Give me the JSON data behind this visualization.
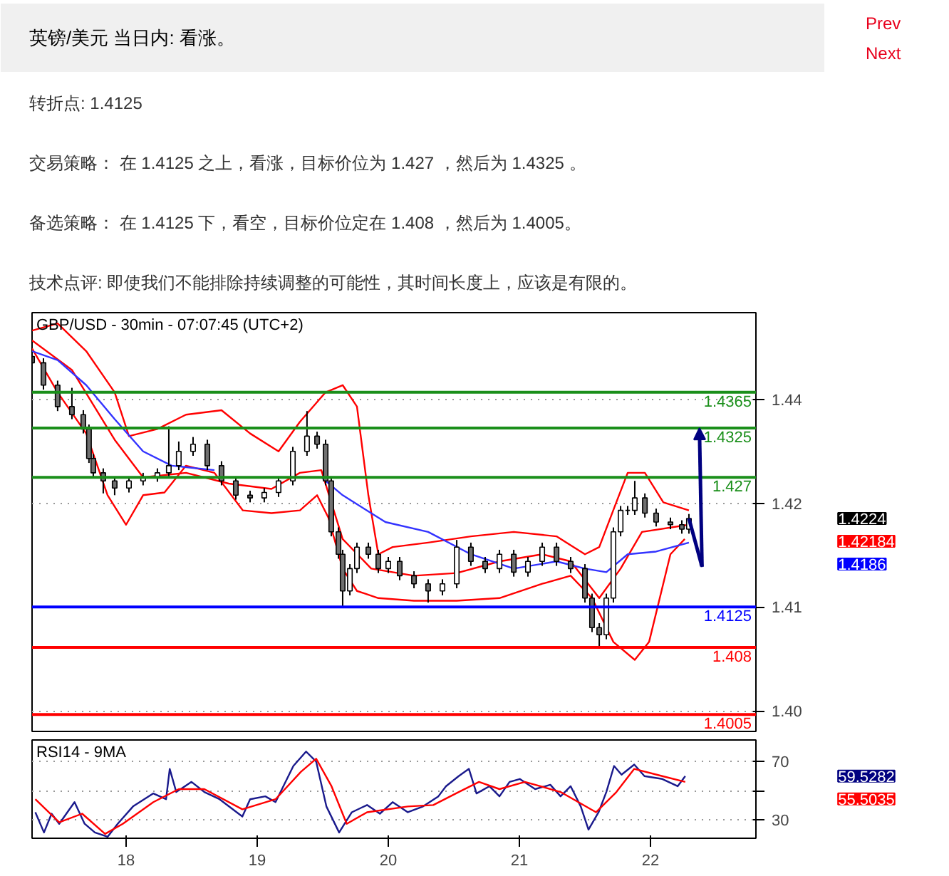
{
  "chart_data": [
    {
      "type": "other",
      "title": "英镑/美元 当日内: 看涨。",
      "annotations": [
        "Prev",
        "Next",
        "转折点: 1.4125",
        "交易策略： 在 1.4125 之上，看涨，目标价位为 1.427 ，然后为 1.4325 。",
        "备选策略： 在 1.4125 下，看空，目标价位定在 1.408 ，然后为 1.4005。",
        "技术点评: 即使我们不能排除持续调整的可能性，其时间长度上，应该是有限的。"
      ]
    },
    {
      "type": "candlestick",
      "title": "GBP/USD - 30min - 07:07:45 (UTC+2)",
      "xlim": [
        17.283,
        22.804
      ],
      "ylim": [
        1.3986,
        1.4454
      ],
      "yticks": [
        {
          "value": 1.4009,
          "label": "1.40"
        },
        {
          "value": 1.4125,
          "label": "1.41"
        },
        {
          "value": 1.4241,
          "label": "1.42"
        },
        {
          "value": 1.4357,
          "label": "1.44"
        }
      ],
      "grid": "y",
      "tick_labels": "y",
      "x": [
        17.283,
        17.37,
        17.478,
        17.587,
        17.674,
        17.717,
        17.75,
        17.826,
        17.913,
        18.022,
        18.13,
        18.239,
        18.326,
        18.402,
        18.511,
        18.62,
        18.728,
        18.837,
        18.946,
        19.054,
        19.163,
        19.272,
        19.38,
        19.457,
        19.522,
        19.565,
        19.62,
        19.652,
        19.707,
        19.761,
        19.848,
        19.924,
        20.0,
        20.087,
        20.196,
        20.304,
        20.413,
        20.522,
        20.63,
        20.739,
        20.848,
        20.957,
        21.065,
        21.174,
        21.283,
        21.391,
        21.5,
        21.554,
        21.609,
        21.663,
        21.717,
        21.772,
        21.826,
        21.88,
        21.957,
        22.043,
        22.152,
        22.239,
        22.293
      ],
      "ohlc": [
        [
          1.4405,
          1.441,
          1.4393,
          1.4398
        ],
        [
          1.4398,
          1.4403,
          1.4368,
          1.4373
        ],
        [
          1.4373,
          1.4378,
          1.4344,
          1.4349
        ],
        [
          1.4349,
          1.437,
          1.4335,
          1.434
        ],
        [
          1.434,
          1.4345,
          1.4319,
          1.4324
        ],
        [
          1.4324,
          1.4329,
          1.4286,
          1.4291
        ],
        [
          1.4291,
          1.4296,
          1.427,
          1.4275
        ],
        [
          1.4275,
          1.428,
          1.4252,
          1.4266
        ],
        [
          1.4266,
          1.4271,
          1.425,
          1.4258
        ],
        [
          1.4258,
          1.4271,
          1.4253,
          1.4266
        ],
        [
          1.4266,
          1.4275,
          1.4261,
          1.427
        ],
        [
          1.427,
          1.428,
          1.4265,
          1.4275
        ],
        [
          1.4275,
          1.4327,
          1.427,
          1.4283
        ],
        [
          1.4283,
          1.431,
          1.4278,
          1.4299
        ],
        [
          1.4299,
          1.4315,
          1.4294,
          1.4307
        ],
        [
          1.4307,
          1.4312,
          1.4278,
          1.4283
        ],
        [
          1.4283,
          1.4288,
          1.4261,
          1.4266
        ],
        [
          1.4266,
          1.4271,
          1.4245,
          1.425
        ],
        [
          1.425,
          1.4255,
          1.4242,
          1.4247
        ],
        [
          1.4247,
          1.4258,
          1.4242,
          1.4253
        ],
        [
          1.4253,
          1.4271,
          1.4248,
          1.4266
        ],
        [
          1.4266,
          1.4304,
          1.4261,
          1.4299
        ],
        [
          1.4299,
          1.4344,
          1.4294,
          1.4316
        ],
        [
          1.4316,
          1.4321,
          1.4302,
          1.4307
        ],
        [
          1.4307,
          1.4312,
          1.4261,
          1.4266
        ],
        [
          1.4266,
          1.4271,
          1.4204,
          1.4209
        ],
        [
          1.4209,
          1.4214,
          1.4179,
          1.4184
        ],
        [
          1.4184,
          1.4189,
          1.4125,
          1.4143
        ],
        [
          1.4143,
          1.4173,
          1.4138,
          1.4168
        ],
        [
          1.4168,
          1.4197,
          1.4163,
          1.4192
        ],
        [
          1.4192,
          1.4197,
          1.4179,
          1.4184
        ],
        [
          1.4184,
          1.4189,
          1.4163,
          1.4168
        ],
        [
          1.4168,
          1.4181,
          1.4163,
          1.4176
        ],
        [
          1.4176,
          1.4181,
          1.4155,
          1.416
        ],
        [
          1.416,
          1.4165,
          1.4146,
          1.4151
        ],
        [
          1.4151,
          1.4156,
          1.413,
          1.4143
        ],
        [
          1.4143,
          1.4156,
          1.4138,
          1.4151
        ],
        [
          1.4151,
          1.42,
          1.4146,
          1.4192
        ],
        [
          1.4192,
          1.4197,
          1.4171,
          1.4176
        ],
        [
          1.4176,
          1.4181,
          1.4163,
          1.4168
        ],
        [
          1.4168,
          1.4189,
          1.4163,
          1.4184
        ],
        [
          1.4184,
          1.4189,
          1.4159,
          1.4164
        ],
        [
          1.4164,
          1.4181,
          1.4159,
          1.4176
        ],
        [
          1.4176,
          1.4197,
          1.4171,
          1.4192
        ],
        [
          1.4192,
          1.4197,
          1.4171,
          1.4176
        ],
        [
          1.4176,
          1.4181,
          1.4163,
          1.4168
        ],
        [
          1.4168,
          1.4173,
          1.413,
          1.4135
        ],
        [
          1.4135,
          1.414,
          1.4097,
          1.4102
        ],
        [
          1.4102,
          1.4107,
          1.4081,
          1.4094
        ],
        [
          1.4094,
          1.414,
          1.4089,
          1.4135
        ],
        [
          1.4135,
          1.4214,
          1.413,
          1.4209
        ],
        [
          1.4209,
          1.4238,
          1.4204,
          1.4233
        ],
        [
          1.4233,
          1.4238,
          1.4228,
          1.4233
        ],
        [
          1.4233,
          1.4266,
          1.4228,
          1.4247
        ],
        [
          1.4247,
          1.4252,
          1.4225,
          1.423
        ],
        [
          1.423,
          1.4235,
          1.4215,
          1.422
        ],
        [
          1.422,
          1.4225,
          1.4212,
          1.4217
        ],
        [
          1.4217,
          1.4222,
          1.4207,
          1.4212
        ],
        [
          1.4212,
          1.4229,
          1.4207,
          1.4224
        ]
      ],
      "series": [
        {
          "type": "line",
          "color": "#ff0000",
          "x": [
            17.283,
            17.478,
            17.696,
            17.913,
            18.022,
            18.239,
            18.457,
            18.728,
            18.946,
            19.163,
            19.326,
            19.522,
            19.652,
            19.761,
            19.848,
            19.924,
            20.033,
            20.304,
            20.63,
            20.957,
            21.283,
            21.5,
            21.609,
            21.739,
            21.826,
            21.957,
            22.098,
            22.293
          ],
          "values": [
            1.4434,
            1.4442,
            1.4411,
            1.4365,
            1.4316,
            1.4324,
            1.434,
            1.4345,
            1.4319,
            1.4299,
            1.4332,
            1.4365,
            1.4373,
            1.4349,
            1.425,
            1.4184,
            1.4192,
            1.4197,
            1.4204,
            1.4209,
            1.4204,
            1.4184,
            1.4192,
            1.4242,
            1.4275,
            1.4275,
            1.4242,
            1.4233
          ]
        },
        {
          "type": "line",
          "color": "#ff0000",
          "x": [
            17.283,
            17.478,
            17.696,
            17.859,
            18.0,
            18.13,
            18.293,
            18.457,
            18.674,
            18.891,
            19.109,
            19.326,
            19.457,
            19.543,
            19.652,
            19.761,
            19.924,
            20.196,
            20.522,
            20.848,
            21.174,
            21.391,
            21.554,
            21.717,
            21.88,
            21.989,
            22.152,
            22.261
          ],
          "values": [
            1.4414,
            1.4365,
            1.4319,
            1.425,
            1.4217,
            1.425,
            1.4253,
            1.4283,
            1.4275,
            1.4233,
            1.423,
            1.4233,
            1.425,
            1.4225,
            1.4168,
            1.4143,
            1.4135,
            1.4132,
            1.4132,
            1.4135,
            1.4151,
            1.416,
            1.4135,
            1.4086,
            1.4066,
            1.4086,
            1.4184,
            1.4201
          ]
        },
        {
          "type": "line",
          "color": "#ff0000",
          "x": [
            17.283,
            17.587,
            17.913,
            18.13,
            18.457,
            18.783,
            19.109,
            19.326,
            19.489,
            19.652,
            19.87,
            20.196,
            20.522,
            20.848,
            21.174,
            21.391,
            21.609,
            21.772,
            21.935,
            22.293
          ],
          "values": [
            1.4423,
            1.439,
            1.4312,
            1.427,
            1.4275,
            1.4263,
            1.4257,
            1.4275,
            1.4278,
            1.4201,
            1.4168,
            1.416,
            1.4163,
            1.4176,
            1.4184,
            1.4176,
            1.4135,
            1.4168,
            1.4209,
            1.4217
          ]
        },
        {
          "type": "line",
          "color": "#3333ff",
          "x": [
            17.283,
            17.478,
            17.696,
            17.913,
            18.13,
            18.348,
            18.674,
            19.0,
            19.326,
            19.489,
            19.652,
            19.978,
            20.304,
            20.63,
            20.957,
            21.283,
            21.5,
            21.663,
            21.826,
            22.043,
            22.293
          ],
          "values": [
            1.4411,
            1.4401,
            1.4373,
            1.4335,
            1.4299,
            1.4283,
            1.4278,
            null,
            null,
            1.427,
            1.425,
            1.422,
            1.4209,
            1.4184,
            1.4168,
            1.4176,
            1.4168,
            1.4164,
            1.4184,
            1.4187,
            1.4197
          ]
        }
      ],
      "ref_lines": [
        {
          "axis": "y",
          "value": 1.4365,
          "label": "1.4365",
          "color": "#1a8f1a"
        },
        {
          "axis": "y",
          "value": 1.4325,
          "label": "1.4325",
          "color": "#1a8f1a"
        },
        {
          "axis": "y",
          "value": 1.427,
          "label": "1.427",
          "color": "#1a8f1a"
        },
        {
          "axis": "y",
          "value": 1.4125,
          "label": "1.4125",
          "color": "#0000ff"
        },
        {
          "axis": "y",
          "value": 1.408,
          "label": "1.408",
          "color": "#ff0000"
        },
        {
          "axis": "y",
          "value": 1.4005,
          "label": "1.4005",
          "color": "#ff0000"
        }
      ],
      "annotations": [
        "1.4224",
        "1.42184",
        "1.4186"
      ]
    },
    {
      "type": "line",
      "title": "RSI14 - 9MA",
      "xlim": [
        17.283,
        22.804
      ],
      "xticks": [
        {
          "value": 18,
          "label": "18"
        },
        {
          "value": 19,
          "label": "19"
        },
        {
          "value": 20,
          "label": "20"
        },
        {
          "value": 21,
          "label": "21"
        },
        {
          "value": 22,
          "label": "22"
        }
      ],
      "ylim": [
        17,
        85
      ],
      "yticks": [
        30,
        {
          "value": 50,
          "label": null
        },
        70
      ],
      "grid": "y",
      "series": [
        {
          "color": "#1a1a8c",
          "x": [
            17.308,
            17.374,
            17.432,
            17.49,
            17.607,
            17.684,
            17.762,
            17.859,
            17.936,
            18.053,
            18.208,
            18.305,
            18.333,
            18.383,
            18.499,
            18.597,
            18.713,
            18.887,
            18.946,
            19.062,
            19.14,
            19.276,
            19.373,
            19.45,
            19.528,
            19.625,
            19.722,
            19.838,
            19.936,
            20.033,
            20.149,
            20.265,
            20.382,
            20.44,
            20.537,
            20.615,
            20.673,
            20.771,
            20.848,
            20.925,
            21.003,
            21.12,
            21.236,
            21.314,
            21.391,
            21.468,
            21.527,
            21.604,
            21.663,
            21.722,
            21.779,
            21.876,
            21.954,
            22.09,
            22.207,
            22.265
          ],
          "values": [
            35,
            21,
            34,
            27,
            42,
            27,
            21,
            18,
            27,
            39,
            48,
            44,
            65,
            49,
            56,
            49,
            44,
            32,
            44,
            46,
            42,
            67,
            77,
            70,
            39,
            21,
            35,
            40,
            34,
            42,
            35,
            39,
            46,
            53,
            60,
            65,
            48,
            53,
            46,
            56,
            58,
            51,
            54,
            46,
            53,
            39,
            23,
            35,
            49,
            67,
            61,
            68,
            60,
            58,
            53,
            60
          ]
        },
        {
          "color": "#ff0000",
          "x": [
            17.308,
            17.49,
            17.665,
            17.84,
            17.975,
            18.208,
            18.402,
            18.597,
            18.887,
            19.14,
            19.334,
            19.45,
            19.567,
            19.683,
            19.838,
            20.149,
            20.343,
            20.537,
            20.692,
            20.848,
            21.042,
            21.314,
            21.585,
            21.74,
            21.876,
            22.09,
            22.265
          ],
          "values": [
            44,
            28,
            34,
            20,
            27,
            42,
            51,
            51,
            37,
            44,
            63,
            72,
            53,
            27,
            35,
            39,
            40,
            49,
            56,
            51,
            56,
            49,
            35,
            49,
            65,
            60,
            56
          ]
        }
      ],
      "annotations": [
        "59.5282",
        "55.5035"
      ]
    }
  ]
}
